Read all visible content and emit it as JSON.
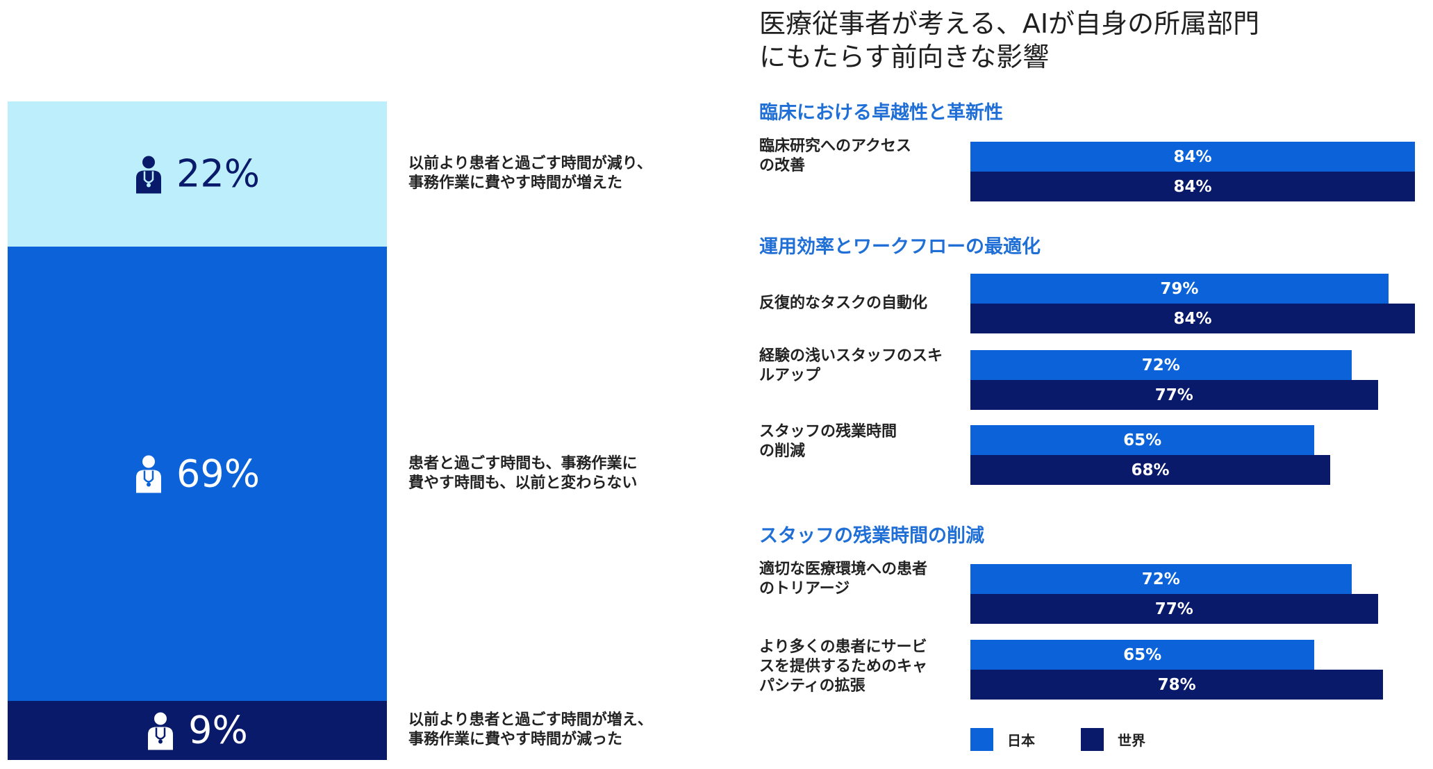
{
  "stacked": {
    "segments": [
      {
        "pct_label": "22%",
        "value": 22,
        "color": "#bdeefb",
        "text_color": "#0a1a6b",
        "icon": "doctor-icon",
        "desc": [
          "以前より患者と過ごす時間が減り、",
          "事務作業に費やす時間が増えた"
        ]
      },
      {
        "pct_label": "69%",
        "value": 69,
        "color": "#0b62d9",
        "text_color": "#ffffff",
        "icon": "doctor-icon",
        "desc": [
          "患者と過ごす時間も、事務作業に",
          "費やす時間も、以前と変わらない"
        ]
      },
      {
        "pct_label": "9%",
        "value": 9,
        "color": "#0a1a6b",
        "text_color": "#ffffff",
        "icon": "doctor-icon",
        "desc": [
          "以前より患者と過ごす時間が増え、",
          "事務作業に費やす時間が減った"
        ]
      }
    ]
  },
  "chart_data": {
    "type": "bar",
    "orientation": "horizontal",
    "title": "医療従事者が考える、AIが自身の所属部門にもたらす前向きな影響",
    "title_lines": [
      "医療従事者が考える、AIが自身の所属部門",
      "にもたらす前向きな影響"
    ],
    "xlim": [
      0,
      84
    ],
    "series_names": [
      "日本",
      "世界"
    ],
    "series_colors": [
      "#0b62d9",
      "#0a1a6b"
    ],
    "groups": [
      {
        "heading": "臨床における卓越性と革新性",
        "rows": [
          {
            "label_lines": [
              "臨床研究へのアクセス",
              "の改善"
            ],
            "jp": 84,
            "world": 84
          }
        ]
      },
      {
        "heading": "運用効率とワークフローの最適化",
        "rows": [
          {
            "label_lines": [
              "反復的なタスクの自動化"
            ],
            "jp": 79,
            "world": 84
          },
          {
            "label_lines": [
              "経験の浅いスタッフのスキ",
              "ルアップ"
            ],
            "jp": 72,
            "world": 77
          },
          {
            "label_lines": [
              "スタッフの残業時間",
              "の削減"
            ],
            "jp": 65,
            "world": 68
          }
        ]
      },
      {
        "heading": "スタッフの残業時間の削減",
        "rows": [
          {
            "label_lines": [
              "適切な医療環境への患者",
              "のトリアージ"
            ],
            "jp": 72,
            "world": 77
          },
          {
            "label_lines": [
              "より多くの患者にサービ",
              "スを提供するためのキャ",
              "パシティの拡張"
            ],
            "jp": 65,
            "world": 78
          }
        ]
      }
    ],
    "legend": [
      {
        "label": "日本",
        "color": "#0b62d9"
      },
      {
        "label": "世界",
        "color": "#0a1a6b"
      }
    ],
    "legend_position": "bottom-left"
  }
}
